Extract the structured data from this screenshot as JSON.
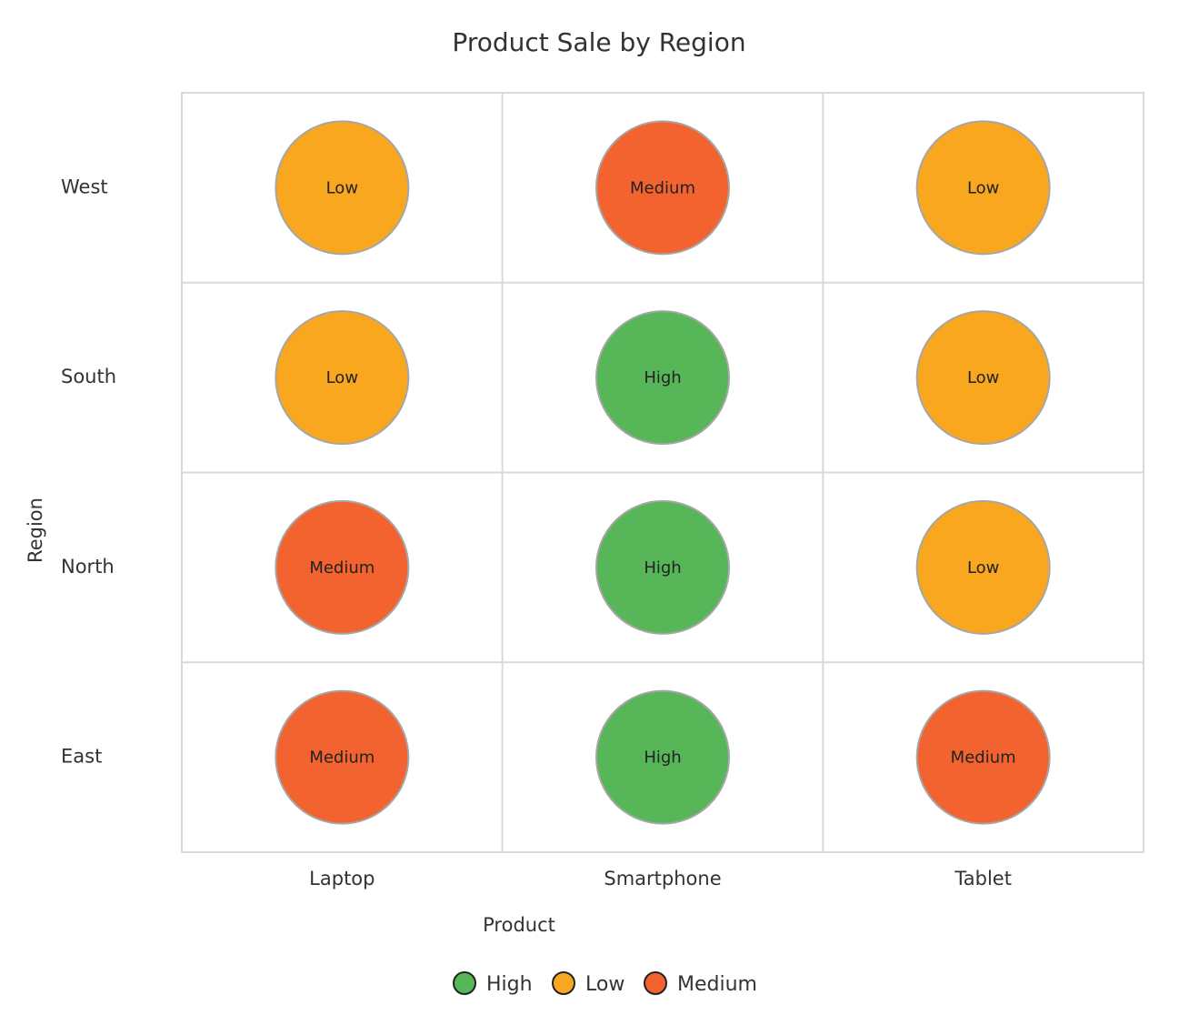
{
  "chart_data": {
    "type": "heatmap",
    "title": "Product Sale by Region",
    "xlabel": "Product",
    "ylabel": "Region",
    "x_categories": [
      "Laptop",
      "Smartphone",
      "Tablet"
    ],
    "y_categories": [
      "West",
      "South",
      "North",
      "East"
    ],
    "cells": [
      [
        "Low",
        "Medium",
        "Low"
      ],
      [
        "Low",
        "High",
        "Low"
      ],
      [
        "Medium",
        "High",
        "Low"
      ],
      [
        "Medium",
        "High",
        "Medium"
      ]
    ],
    "legend": [
      {
        "label": "High",
        "color": "#57b657"
      },
      {
        "label": "Low",
        "color": "#f8a71e"
      },
      {
        "label": "Medium",
        "color": "#f3632f"
      }
    ],
    "colors": {
      "High": "#57b657",
      "Low": "#f8a71e",
      "Medium": "#f3632f"
    },
    "grid": true,
    "legend_position": "bottom"
  }
}
